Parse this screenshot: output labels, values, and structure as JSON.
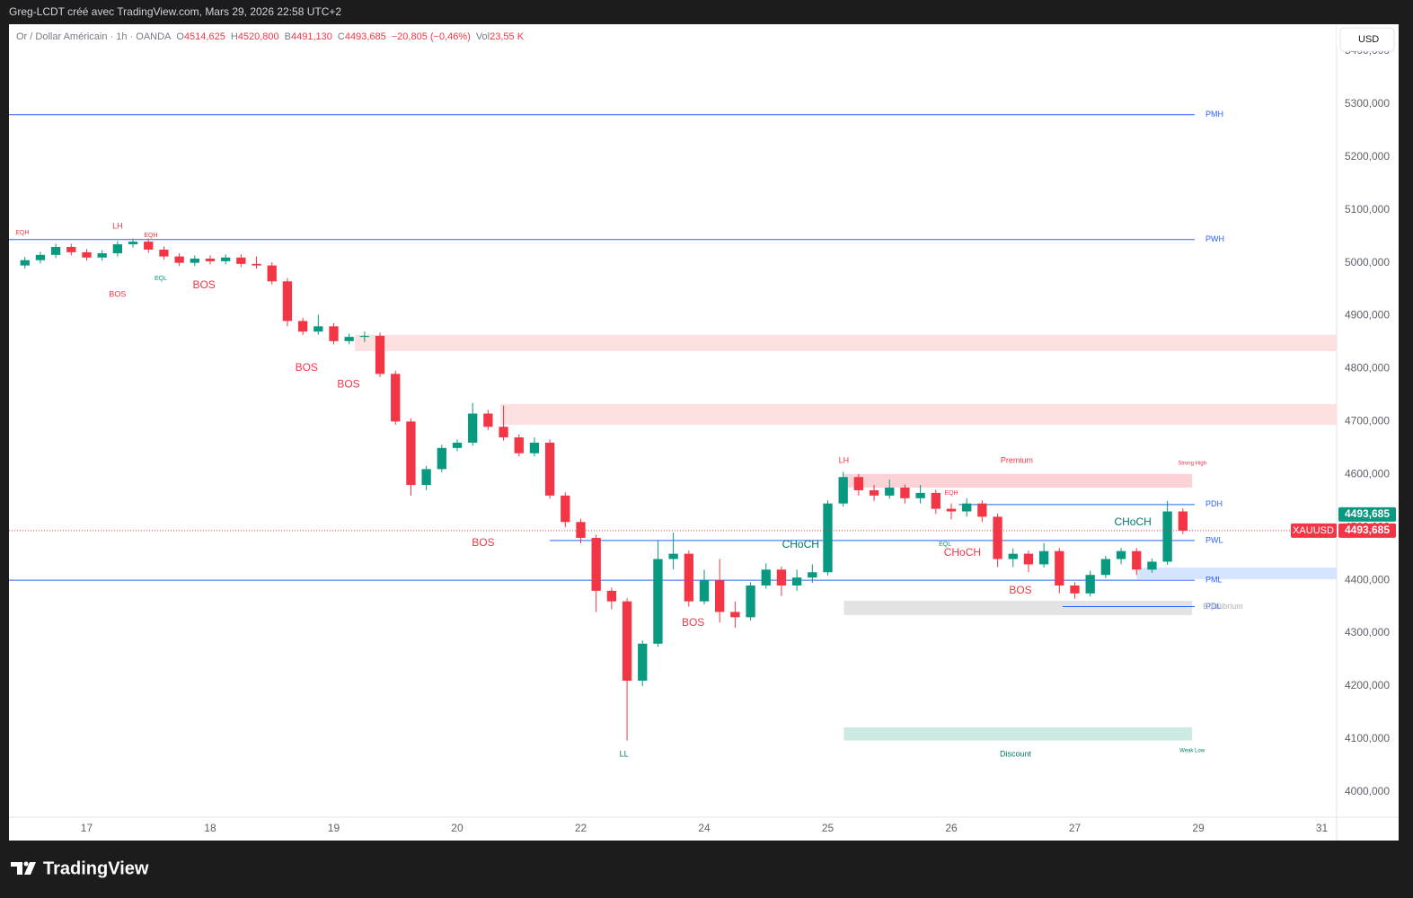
{
  "page": {
    "author": "Greg-LCDT créé avec TradingView.com, Mars 29, 2026 22:58 UTC+2",
    "brand": "TradingView"
  },
  "chart_data": {
    "type": "candlestick",
    "title": "Or / Dollar Américain · 1h · OANDA",
    "ohlc_legend": [
      {
        "label": "O",
        "value": "4514,625"
      },
      {
        "label": "H",
        "value": "4520,800"
      },
      {
        "label": "B",
        "value": "4491,130"
      },
      {
        "label": "C",
        "value": "4493,685"
      }
    ],
    "change": "−20,805 (−0,46%)",
    "volume_label": "Vol",
    "volume": "23,55 K",
    "currency": "USD",
    "symbol": "XAUUSD",
    "last_price": {
      "value": 4493.685,
      "label": "4493,685"
    },
    "up_color": "#089981",
    "down_color": "#f23645",
    "xlim": [
      -0.629,
      10.12
    ],
    "xticks": [
      {
        "value": 0,
        "label": "17"
      },
      {
        "value": 1,
        "label": "18"
      },
      {
        "value": 2,
        "label": "19"
      },
      {
        "value": 3,
        "label": "20"
      },
      {
        "value": 4,
        "label": "22"
      },
      {
        "value": 5,
        "label": "24"
      },
      {
        "value": 6,
        "label": "25"
      },
      {
        "value": 7,
        "label": "26"
      },
      {
        "value": 8,
        "label": "27"
      },
      {
        "value": 9,
        "label": "29"
      },
      {
        "value": 10,
        "label": "31"
      }
    ],
    "ylim": [
      3952,
      5451
    ],
    "yticks": [
      {
        "value": 4000,
        "label": "4000,000"
      },
      {
        "value": 4100,
        "label": "4100,000"
      },
      {
        "value": 4200,
        "label": "4200,000"
      },
      {
        "value": 4300,
        "label": "4300,000"
      },
      {
        "value": 4400,
        "label": "4400,000"
      },
      {
        "value": 4500,
        "label": "4500,000"
      },
      {
        "value": 4600,
        "label": "4600,000"
      },
      {
        "value": 4700,
        "label": "4700,000"
      },
      {
        "value": 4800,
        "label": "4800,000"
      },
      {
        "value": 4900,
        "label": "4900,000"
      },
      {
        "value": 5000,
        "label": "5000,000"
      },
      {
        "value": 5100,
        "label": "5100,000"
      },
      {
        "value": 5200,
        "label": "5200,000"
      },
      {
        "value": 5300,
        "label": "5300,000"
      },
      {
        "value": 5400,
        "label": "5400,000"
      }
    ],
    "grid": false,
    "x": [
      -0.5,
      -0.375,
      -0.25,
      -0.125,
      0,
      0.125,
      0.25,
      0.375,
      0.5,
      0.625,
      0.75,
      0.875,
      1,
      1.125,
      1.25,
      1.375,
      1.5,
      1.625,
      1.75,
      1.875,
      2,
      2.125,
      2.25,
      2.375,
      2.5,
      2.625,
      2.75,
      2.875,
      3,
      3.125,
      3.25,
      3.375,
      3.5,
      3.625,
      3.75,
      3.875,
      4,
      4.125,
      4.25,
      4.375,
      4.5,
      4.625,
      4.75,
      4.875,
      5,
      5.125,
      5.25,
      5.375,
      5.5,
      5.625,
      5.75,
      5.875,
      6,
      6.125,
      6.25,
      6.375,
      6.5,
      6.625,
      6.75,
      6.875,
      7,
      7.125,
      7.25,
      7.375,
      7.5,
      7.625,
      7.75,
      7.875,
      8,
      8.125,
      8.25,
      8.375,
      8.5,
      8.625,
      8.75,
      8.875
    ],
    "ohlc": [
      [
        4995,
        5011,
        4989,
        5005
      ],
      [
        5005,
        5021,
        4999,
        5015
      ],
      [
        5015,
        5036,
        5009,
        5030
      ],
      [
        5030,
        5036,
        5014,
        5020
      ],
      [
        5020,
        5026,
        5004,
        5010
      ],
      [
        5010,
        5024,
        5004,
        5018
      ],
      [
        5018,
        5041,
        5012,
        5035
      ],
      [
        5035,
        5046,
        5029,
        5040
      ],
      [
        5040,
        5046,
        5019,
        5025
      ],
      [
        5025,
        5031,
        5006,
        5012
      ],
      [
        5012,
        5018,
        4994,
        5000
      ],
      [
        5000,
        5014,
        4994,
        5008
      ],
      [
        5008,
        5014,
        4997,
        5003
      ],
      [
        5003,
        5016,
        4997,
        5010
      ],
      [
        5010,
        5016,
        4992,
        4998
      ],
      [
        4998,
        5012,
        4989,
        4995
      ],
      [
        4995,
        5001,
        4959,
        4965
      ],
      [
        4965,
        4971,
        4880,
        4890
      ],
      [
        4890,
        4896,
        4864,
        4870
      ],
      [
        4870,
        4902,
        4864,
        4880
      ],
      [
        4880,
        4886,
        4846,
        4852
      ],
      [
        4852,
        4866,
        4846,
        4860
      ],
      [
        4860,
        4870,
        4850,
        4862
      ],
      [
        4862,
        4868,
        4784,
        4790
      ],
      [
        4790,
        4796,
        4694,
        4700
      ],
      [
        4700,
        4706,
        4560,
        4580
      ],
      [
        4580,
        4616,
        4570,
        4610
      ],
      [
        4610,
        4656,
        4604,
        4650
      ],
      [
        4650,
        4666,
        4644,
        4660
      ],
      [
        4660,
        4735,
        4654,
        4715
      ],
      [
        4715,
        4722,
        4684,
        4690
      ],
      [
        4690,
        4730,
        4664,
        4670
      ],
      [
        4670,
        4676,
        4634,
        4640
      ],
      [
        4640,
        4670,
        4634,
        4660
      ],
      [
        4660,
        4666,
        4554,
        4560
      ],
      [
        4560,
        4566,
        4500,
        4510
      ],
      [
        4510,
        4516,
        4470,
        4480
      ],
      [
        4480,
        4486,
        4340,
        4380
      ],
      [
        4380,
        4386,
        4345,
        4360
      ],
      [
        4360,
        4366,
        4097,
        4210
      ],
      [
        4210,
        4286,
        4200,
        4280
      ],
      [
        4280,
        4475,
        4274,
        4440
      ],
      [
        4440,
        4490,
        4420,
        4450
      ],
      [
        4450,
        4456,
        4350,
        4360
      ],
      [
        4360,
        4420,
        4354,
        4400
      ],
      [
        4400,
        4440,
        4320,
        4340
      ],
      [
        4340,
        4360,
        4310,
        4330
      ],
      [
        4330,
        4396,
        4324,
        4390
      ],
      [
        4390,
        4432,
        4384,
        4420
      ],
      [
        4420,
        4426,
        4370,
        4390
      ],
      [
        4390,
        4420,
        4380,
        4405
      ],
      [
        4405,
        4430,
        4395,
        4415
      ],
      [
        4415,
        4551,
        4409,
        4545
      ],
      [
        4545,
        4605,
        4539,
        4595
      ],
      [
        4595,
        4601,
        4560,
        4570
      ],
      [
        4570,
        4580,
        4550,
        4560
      ],
      [
        4560,
        4590,
        4554,
        4575
      ],
      [
        4575,
        4581,
        4545,
        4555
      ],
      [
        4555,
        4580,
        4545,
        4565
      ],
      [
        4565,
        4571,
        4525,
        4535
      ],
      [
        4535,
        4545,
        4515,
        4530
      ],
      [
        4530,
        4555,
        4520,
        4545
      ],
      [
        4545,
        4551,
        4510,
        4520
      ],
      [
        4520,
        4526,
        4425,
        4440
      ],
      [
        4440,
        4460,
        4425,
        4450
      ],
      [
        4450,
        4456,
        4415,
        4430
      ],
      [
        4430,
        4470,
        4424,
        4455
      ],
      [
        4455,
        4461,
        4375,
        4390
      ],
      [
        4390,
        4396,
        4365,
        4375
      ],
      [
        4375,
        4418,
        4369,
        4410
      ],
      [
        4410,
        4446,
        4404,
        4440
      ],
      [
        4440,
        4461,
        4430,
        4455
      ],
      [
        4455,
        4461,
        4410,
        4420
      ],
      [
        4420,
        4441,
        4414,
        4435
      ],
      [
        4435,
        4550,
        4429,
        4530
      ],
      [
        4530,
        4536,
        4487,
        4493.685
      ]
    ],
    "levels": [
      {
        "name": "PMH",
        "value": 5280,
        "from": -0.629,
        "color": "#2962ff"
      },
      {
        "name": "PWH",
        "value": 5044,
        "from": -0.629,
        "color": "#2962ff"
      },
      {
        "name": "PDH",
        "value": 4543,
        "from": 7.06,
        "color": "#2962ff"
      },
      {
        "name": "PWL",
        "value": 4475,
        "from": 3.75,
        "color": "#2962ff"
      },
      {
        "name": "PML",
        "value": 4400,
        "from": -0.629,
        "color": "#2962ff"
      },
      {
        "name": "PDL",
        "value": 4350,
        "from": 7.9,
        "color": "#2962ff"
      }
    ],
    "zones": [
      {
        "from": 2.17,
        "low": 4833,
        "high": 4864,
        "color": "#fde0e0"
      },
      {
        "from": 3.35,
        "low": 4694,
        "high": 4733,
        "color": "#fde0e0"
      },
      {
        "from": 6.13,
        "to": 8.95,
        "low": 4575,
        "high": 4601,
        "color": "#fbd3d6"
      },
      {
        "from": 6.13,
        "to": 8.95,
        "low": 4334,
        "high": 4361,
        "color": "#e3e3e5"
      },
      {
        "from": 6.13,
        "to": 8.95,
        "low": 4097,
        "high": 4122,
        "color": "#cdeae2"
      },
      {
        "from": 8.5,
        "low": 4402,
        "high": 4424,
        "color": "#d6e4ff"
      }
    ],
    "annotations": [
      {
        "text": "LH",
        "x": 0.25,
        "y": 5069,
        "color": "#f23645",
        "size": 9
      },
      {
        "text": "EQH",
        "x": -0.52,
        "y": 5057,
        "color": "#f23645",
        "size": 7
      },
      {
        "text": "EQH",
        "x": 0.52,
        "y": 5052,
        "color": "#f23645",
        "size": 7
      },
      {
        "text": "EQL",
        "x": 0.6,
        "y": 4970,
        "color": "#089981",
        "size": 7
      },
      {
        "text": "BOS",
        "x": 0.25,
        "y": 4940,
        "color": "#f23645",
        "size": 9
      },
      {
        "text": "BOS",
        "x": 0.95,
        "y": 4957,
        "color": "#f23645",
        "size": 12
      },
      {
        "text": "BOS",
        "x": 1.78,
        "y": 4801,
        "color": "#f23645",
        "size": 12
      },
      {
        "text": "BOS",
        "x": 2.12,
        "y": 4770,
        "color": "#f23645",
        "size": 12
      },
      {
        "text": "BOS",
        "x": 3.21,
        "y": 4470,
        "color": "#f23645",
        "size": 12
      },
      {
        "text": "BOS",
        "x": 4.91,
        "y": 4319,
        "color": "#f23645",
        "size": 12
      },
      {
        "text": "BOS",
        "x": 7.56,
        "y": 4380,
        "color": "#f23645",
        "size": 12
      },
      {
        "text": "LH",
        "x": 6.13,
        "y": 4626,
        "color": "#f23645",
        "size": 9
      },
      {
        "text": "LL",
        "x": 4.35,
        "y": 4071,
        "color": "#00796b",
        "size": 9
      },
      {
        "text": "CHoCH",
        "x": 5.78,
        "y": 4467,
        "color": "#00796b",
        "size": 12
      },
      {
        "text": "CHoCH",
        "x": 7.09,
        "y": 4451,
        "color": "#f23645",
        "size": 12
      },
      {
        "text": "CHoCH",
        "x": 8.47,
        "y": 4509,
        "color": "#00796b",
        "size": 12
      },
      {
        "text": "EQH",
        "x": 7.0,
        "y": 4565,
        "color": "#f23645",
        "size": 7
      },
      {
        "text": "EQL",
        "x": 6.95,
        "y": 4468,
        "color": "#089981",
        "size": 7
      },
      {
        "text": "Premium",
        "x": 7.53,
        "y": 4626,
        "color": "#f23645",
        "size": 9
      },
      {
        "text": "Discount",
        "x": 7.52,
        "y": 4071,
        "color": "#00796b",
        "size": 9
      },
      {
        "text": "Equilibrium",
        "x": 9.2,
        "y": 4350,
        "color": "#b0b0b5",
        "size": 9
      },
      {
        "text": "Strong High",
        "x": 8.95,
        "y": 4621,
        "color": "#f23645",
        "size": 6
      },
      {
        "text": "Weak Low",
        "x": 8.95,
        "y": 4078,
        "color": "#00796b",
        "size": 6
      }
    ]
  }
}
